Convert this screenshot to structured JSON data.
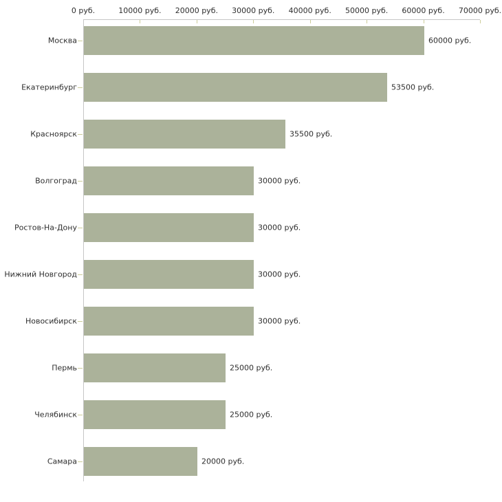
{
  "chart_data": {
    "type": "bar",
    "orientation": "horizontal",
    "categories": [
      "Москва",
      "Екатеринбург",
      "Красноярск",
      "Волгоград",
      "Ростов-На-Дону",
      "Нижний Новгород",
      "Новосибирск",
      "Пермь",
      "Челябинск",
      "Самара"
    ],
    "values": [
      60000,
      53500,
      35500,
      30000,
      30000,
      30000,
      30000,
      25000,
      25000,
      20000
    ],
    "value_labels": [
      "60000 руб.",
      "53500 руб.",
      "35500 руб.",
      "30000 руб.",
      "30000 руб.",
      "30000 руб.",
      "30000 руб.",
      "25000 руб.",
      "25000 руб.",
      "20000 руб."
    ],
    "x_ticks": [
      {
        "value": 0,
        "label": "0 руб."
      },
      {
        "value": 10000,
        "label": "10000 руб."
      },
      {
        "value": 20000,
        "label": "20000 руб."
      },
      {
        "value": 30000,
        "label": "30000 руб."
      },
      {
        "value": 40000,
        "label": "40000 руб."
      },
      {
        "value": 50000,
        "label": "50000 руб."
      },
      {
        "value": 60000,
        "label": "60000 руб."
      },
      {
        "value": 70000,
        "label": "70000 руб."
      }
    ],
    "xlim": [
      0,
      70000
    ],
    "grid": "off",
    "legend": "none",
    "colors": {
      "bar": "#abb29a",
      "axis_line": "#c6c6c6",
      "tick": "#cccc99",
      "text": "#2e2e2e",
      "background": "#ffffff"
    }
  }
}
